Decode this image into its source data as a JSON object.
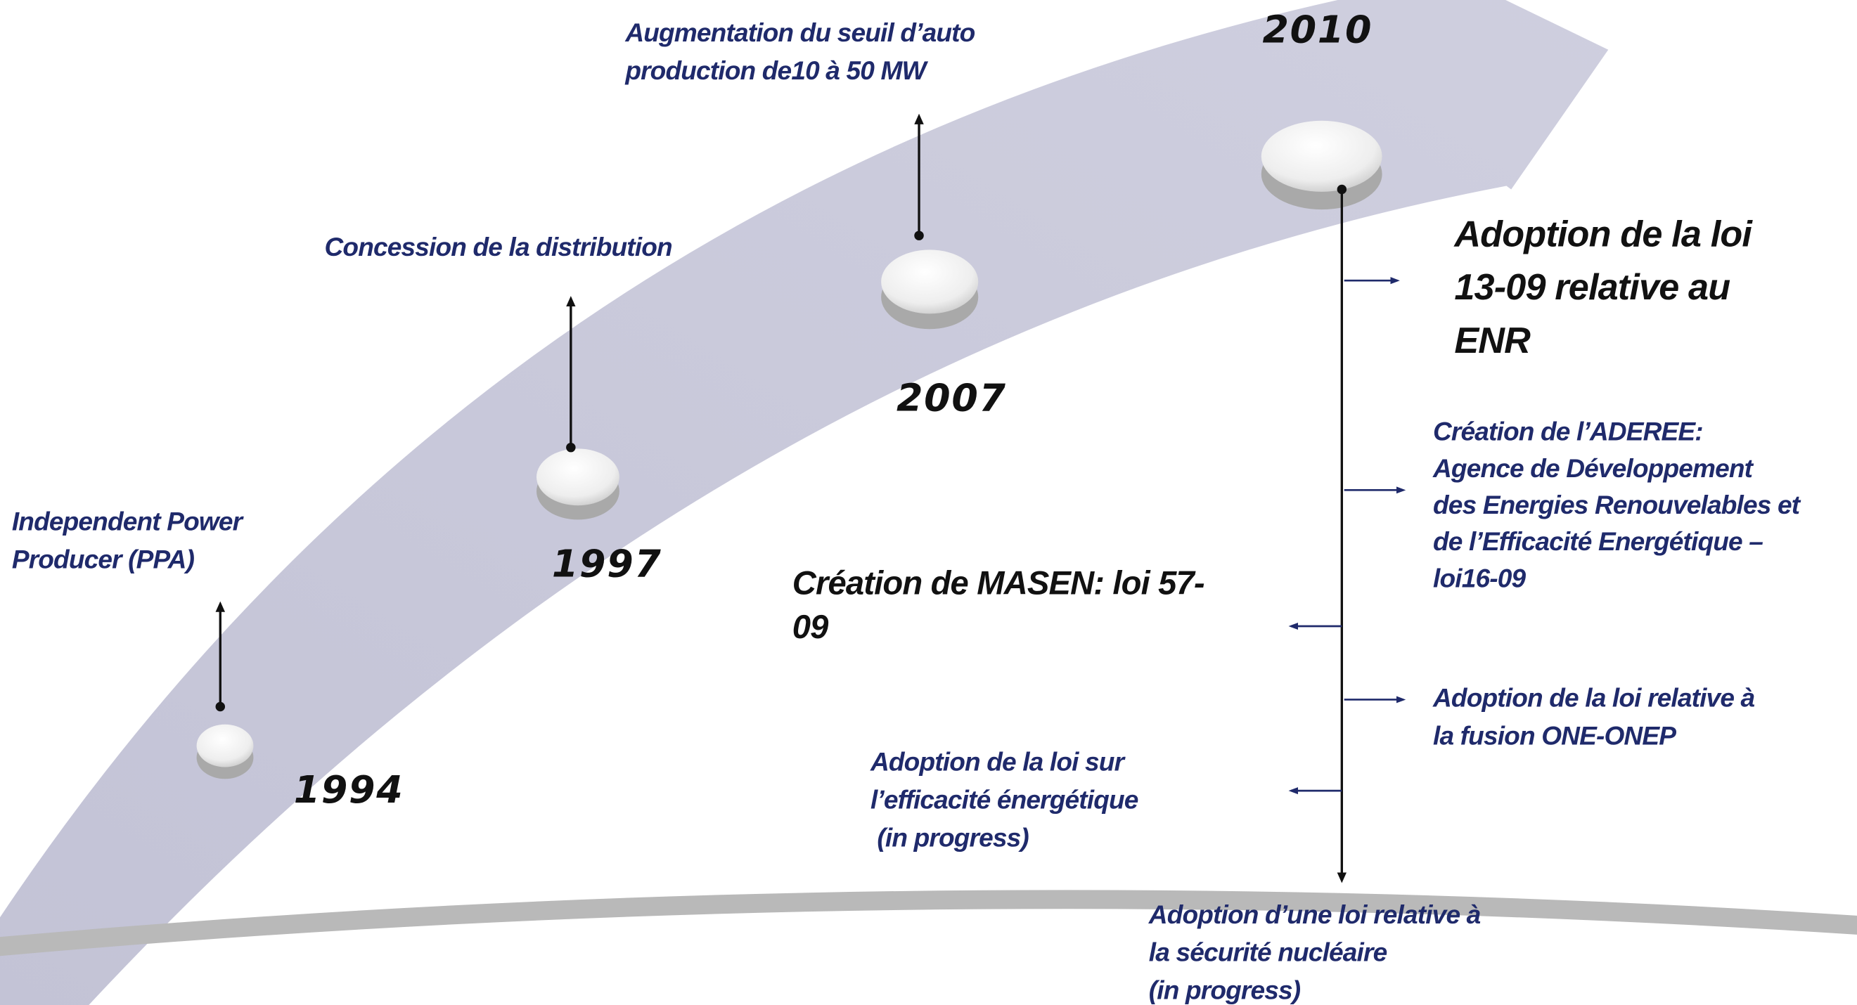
{
  "milestones": [
    {
      "year": "1994",
      "label": [
        "Independent Power",
        "Producer (PPA)"
      ]
    },
    {
      "year": "1997",
      "label": [
        "Concession de la distribution"
      ]
    },
    {
      "year": "2007",
      "label": [
        "Augmentation du seuil d’auto",
        "production de10 à 50 MW"
      ]
    },
    {
      "year": "2010",
      "events": [
        [
          "Adoption de la loi",
          "13-09 relative au",
          "ENR"
        ],
        [
          "Création de l’ADEREE:",
          "Agence de Développement",
          "des Energies Renouvelables et",
          "de l’Efficacité Energétique –",
          "loi16-09"
        ],
        [
          "Création de MASEN: loi 57-",
          "09"
        ],
        [
          "Adoption  de la loi relative à",
          "la fusion ONE-ONEP"
        ],
        [
          "Adoption  de la loi sur",
          "l’efficacité énergétique",
          " (in progress)"
        ],
        [
          "Adoption  d’une  loi relative à",
          "la sécurité nucléaire",
          "(in progress)"
        ]
      ]
    }
  ]
}
